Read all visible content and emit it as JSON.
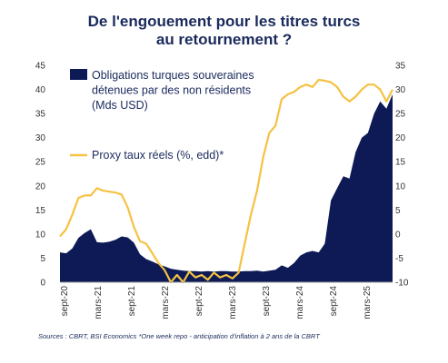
{
  "title": {
    "line1": "De l'engouement pour les titres turcs",
    "line2": "au retournement ?"
  },
  "source": "Sources : CBRT, BSI Economics   *One week repo - anticipation d'inflation à 2 ans de la CBRT",
  "colors": {
    "navy": "#0d1a56",
    "yellow": "#f5c242"
  },
  "chart_data": {
    "type": "area",
    "x_tick_labels": [
      "sept-20",
      "mars-21",
      "sept-21",
      "mars-22",
      "sept-22",
      "mars-23",
      "sept-23",
      "mars-24",
      "sept-24",
      "mars-25"
    ],
    "left_axis": {
      "ticks": [
        0,
        5,
        10,
        15,
        20,
        25,
        30,
        35,
        40,
        45
      ],
      "range": [
        0,
        45
      ]
    },
    "right_axis": {
      "ticks": [
        -10,
        -5,
        0,
        5,
        10,
        15,
        20,
        25,
        30,
        35
      ],
      "range": [
        -10,
        35
      ]
    },
    "x_range": [
      0,
      54
    ],
    "series": [
      {
        "name": "Obligations turques souveraines détenues par des non résidents (Mds USD)",
        "type": "area",
        "axis": "left",
        "x": [
          0,
          1,
          2,
          3,
          4,
          5,
          6,
          7,
          8,
          9,
          10,
          11,
          12,
          13,
          14,
          15,
          16,
          17,
          18,
          19,
          20,
          21,
          22,
          23,
          24,
          25,
          26,
          27,
          28,
          29,
          30,
          31,
          32,
          33,
          34,
          35,
          36,
          37,
          38,
          39,
          40,
          41,
          42,
          43,
          44,
          45,
          46,
          47,
          48,
          49,
          50,
          51,
          52,
          53,
          54
        ],
        "values": [
          6.2,
          6.0,
          7.0,
          9.2,
          10.2,
          11.0,
          8.3,
          8.2,
          8.4,
          8.8,
          9.5,
          9.3,
          8.2,
          5.8,
          4.8,
          4.3,
          3.7,
          3.3,
          2.8,
          2.6,
          2.4,
          2.3,
          2.3,
          2.2,
          2.3,
          2.2,
          2.3,
          2.3,
          2.2,
          2.2,
          2.3,
          2.3,
          2.4,
          2.2,
          2.4,
          2.6,
          3.5,
          3.0,
          4.0,
          5.5,
          6.2,
          6.5,
          6.2,
          8.0,
          17.0,
          19.5,
          22.0,
          21.5,
          27.0,
          30.0,
          31.0,
          35.0,
          37.5,
          36.0,
          39.0
        ]
      },
      {
        "name": "Proxy taux réels (%, edd)*",
        "type": "line",
        "axis": "right",
        "x": [
          0,
          1,
          2,
          3,
          4,
          5,
          6,
          7,
          8,
          9,
          10,
          11,
          12,
          13,
          14,
          15,
          16,
          17,
          18,
          19,
          20,
          21,
          22,
          23,
          24,
          25,
          26,
          27,
          28,
          29,
          30,
          31,
          32,
          33,
          34,
          35,
          36,
          37,
          38,
          39,
          40,
          41,
          42,
          43,
          44,
          45,
          46,
          47,
          48,
          49,
          50,
          51,
          52,
          53,
          54
        ],
        "values": [
          -0.5,
          1.0,
          4.0,
          7.5,
          8.0,
          8.0,
          9.5,
          9.0,
          8.8,
          8.6,
          8.2,
          5.5,
          1.5,
          -1.5,
          -2.0,
          -4.0,
          -6.0,
          -7.5,
          -10.0,
          -8.5,
          -10.0,
          -7.8,
          -9.0,
          -8.5,
          -9.5,
          -8.0,
          -9.0,
          -8.5,
          -9.2,
          -8.0,
          -2.0,
          4.0,
          9.0,
          16.0,
          21.0,
          22.5,
          28.0,
          29.0,
          29.5,
          30.5,
          31.0,
          30.5,
          32.0,
          31.8,
          31.5,
          30.5,
          28.5,
          27.5,
          28.5,
          30.0,
          31.0,
          31.0,
          30.0,
          27.5,
          30.0
        ]
      }
    ]
  }
}
